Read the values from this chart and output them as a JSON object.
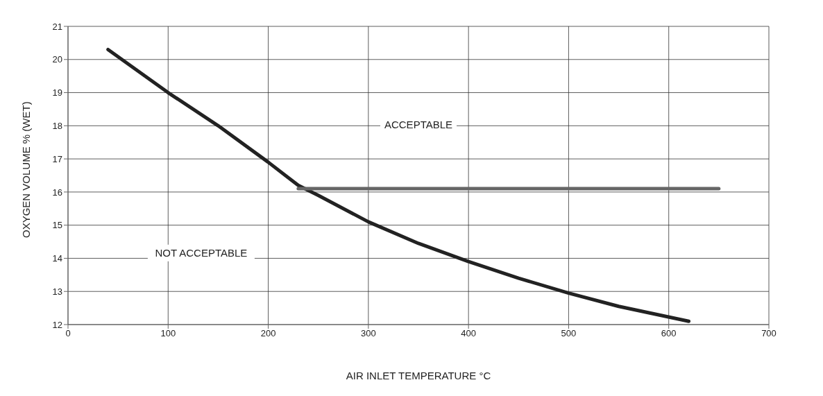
{
  "chart_data": {
    "type": "line",
    "xlabel": "AIR INLET TEMPERATURE °C",
    "ylabel": "OXYGEN VOLUME % (WET)",
    "series": [
      {
        "color": "#222222",
        "x": [
          40,
          100,
          150,
          200,
          230,
          250,
          300,
          350,
          400,
          450,
          500,
          550,
          620
        ],
        "values": [
          20.3,
          19.0,
          18.0,
          16.9,
          16.2,
          15.9,
          15.1,
          14.45,
          13.9,
          13.4,
          12.95,
          12.55,
          12.1
        ]
      },
      {
        "color": "#666666",
        "x": [
          230,
          650
        ],
        "values": [
          16.1,
          16.1
        ]
      }
    ],
    "annotations": [
      "ACCEPTABLE",
      "NOT ACCEPTABLE"
    ],
    "xlim": [
      0,
      700
    ],
    "xticks": [
      0,
      100,
      200,
      300,
      400,
      500,
      600,
      700
    ],
    "ylim": [
      12,
      21
    ],
    "yticks": [
      12,
      13,
      14,
      15,
      16,
      17,
      18,
      19,
      20,
      21
    ],
    "grid": true,
    "marker": "none",
    "line_style": "solid"
  }
}
